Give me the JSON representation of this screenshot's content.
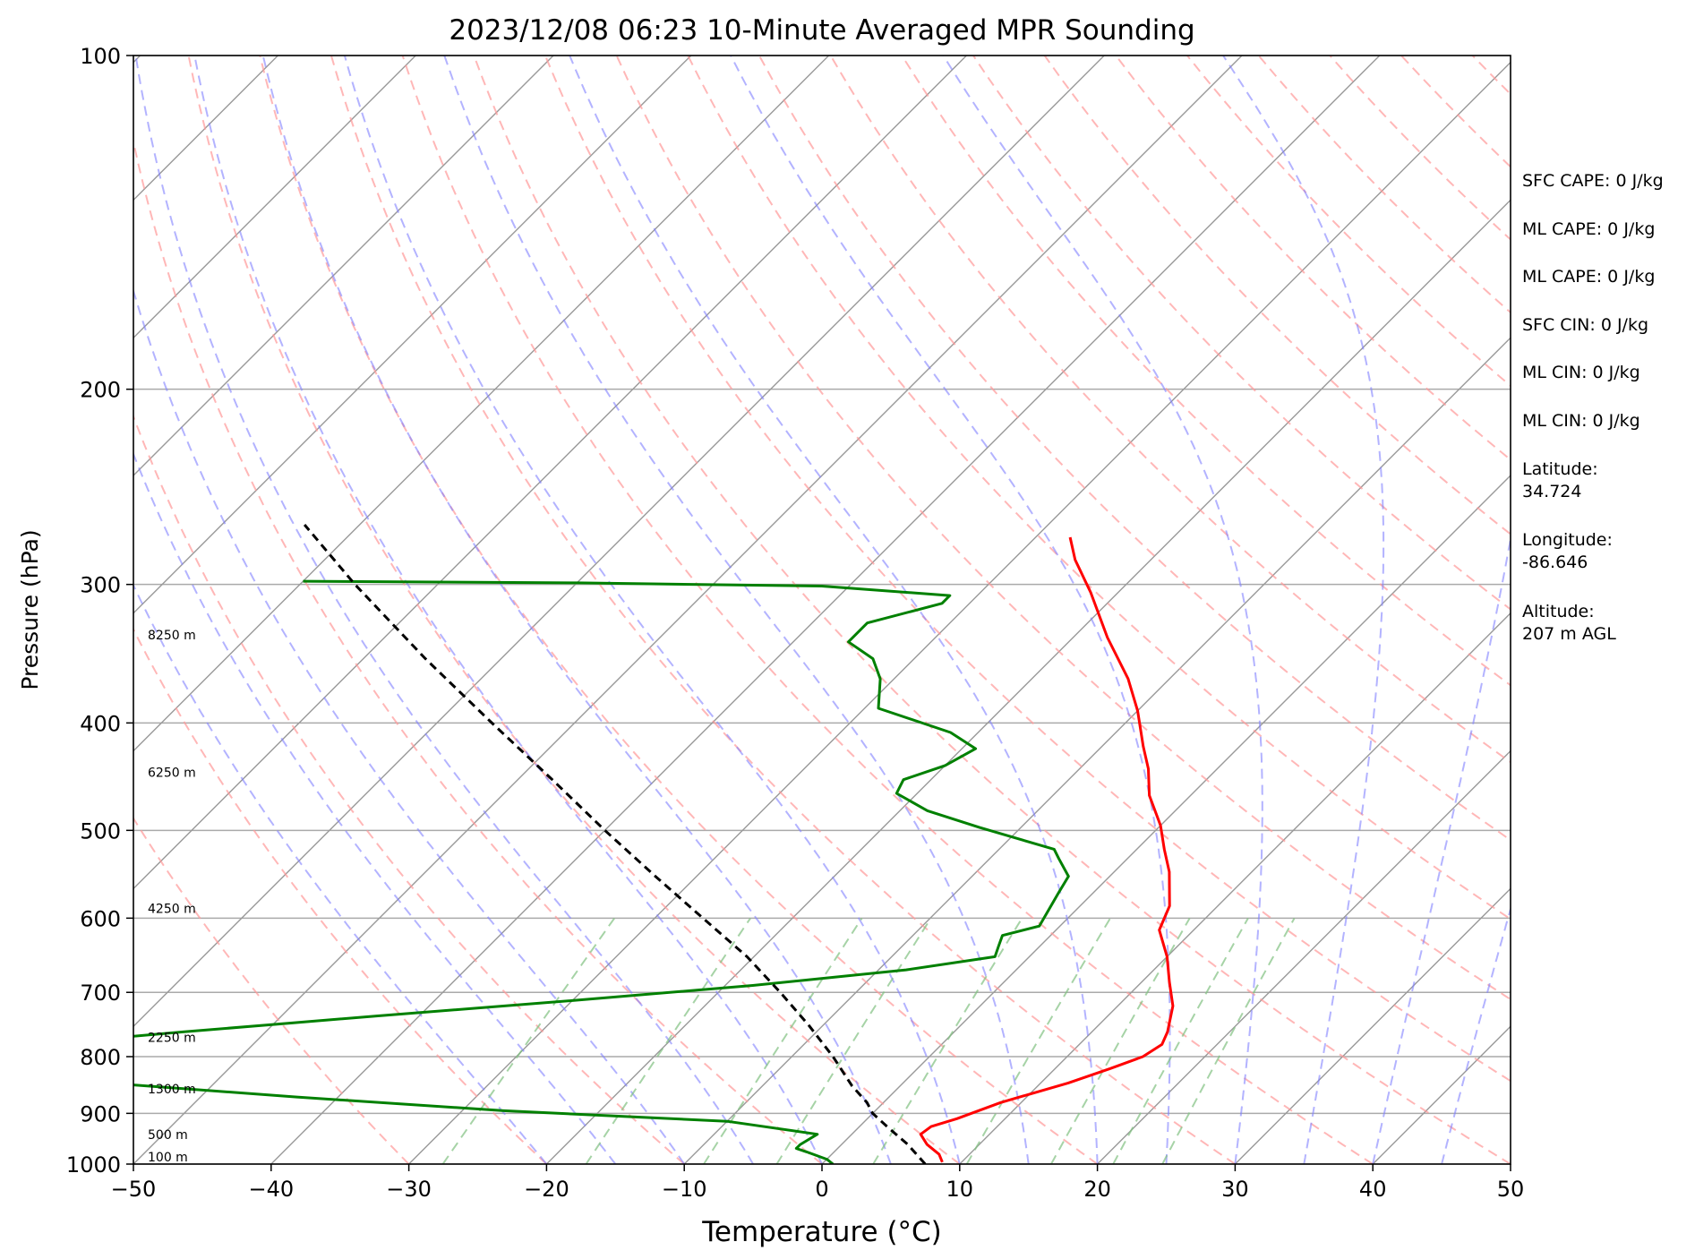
{
  "chart_data": {
    "type": "line",
    "subtype": "skew-t log-p sounding",
    "title": "2023/12/08 06:23 10-Minute Averaged MPR Sounding",
    "xlabel": "Temperature (°C)",
    "ylabel": "Pressure (hPa)",
    "xlim": [
      -50,
      50
    ],
    "ylim": [
      1000,
      100
    ],
    "y_scale": "log",
    "skew_degrees": 45,
    "x_ticks": [
      -50,
      -40,
      -30,
      -20,
      -10,
      0,
      10,
      20,
      30,
      40,
      50
    ],
    "x_tick_labels": [
      "−50",
      "−40",
      "−30",
      "−20",
      "−10",
      "0",
      "10",
      "20",
      "30",
      "40",
      "50"
    ],
    "y_ticks": [
      1000,
      900,
      800,
      700,
      600,
      500,
      400,
      300,
      200,
      100
    ],
    "y_tick_labels": [
      "1000",
      "900",
      "800",
      "700",
      "600",
      "500",
      "400",
      "300",
      "200",
      "100"
    ],
    "grid": true,
    "height_labels": [
      {
        "pressure": 1000,
        "text": "100 m"
      },
      {
        "pressure": 955,
        "text": "500 m"
      },
      {
        "pressure": 868,
        "text": "1300 m"
      },
      {
        "pressure": 780,
        "text": "2250 m"
      },
      {
        "pressure": 597,
        "text": "4250 m"
      },
      {
        "pressure": 450,
        "text": "6250 m"
      },
      {
        "pressure": 338,
        "text": "8250 m"
      }
    ],
    "series": [
      {
        "role": "temperature",
        "color": "#ff0000",
        "points": [
          [
            996,
            8.6
          ],
          [
            980,
            7.8
          ],
          [
            960,
            6.2
          ],
          [
            940,
            5.0
          ],
          [
            925,
            5.2
          ],
          [
            910,
            6.5
          ],
          [
            880,
            8.5
          ],
          [
            845,
            12.0
          ],
          [
            820,
            14.0
          ],
          [
            800,
            15.5
          ],
          [
            780,
            16.0
          ],
          [
            760,
            15.5
          ],
          [
            720,
            14.0
          ],
          [
            685,
            12.0
          ],
          [
            650,
            10.0
          ],
          [
            615,
            7.5
          ],
          [
            585,
            6.5
          ],
          [
            545,
            4.0
          ],
          [
            520,
            2.0
          ],
          [
            495,
            0.0
          ],
          [
            465,
            -3.0
          ],
          [
            440,
            -5.0
          ],
          [
            420,
            -7.0
          ],
          [
            390,
            -10.0
          ],
          [
            365,
            -13.0
          ],
          [
            335,
            -17.5
          ],
          [
            305,
            -22.0
          ],
          [
            285,
            -25.5
          ],
          [
            272,
            -27.5
          ]
        ]
      },
      {
        "role": "dewpoint",
        "color": "#008000",
        "points": [
          [
            1000,
            0.8
          ],
          [
            990,
            0.0
          ],
          [
            975,
            -2.0
          ],
          [
            968,
            -3.0
          ],
          [
            960,
            -3.0
          ],
          [
            940,
            -2.5
          ],
          [
            915,
            -10.0
          ],
          [
            895,
            -27.0
          ],
          [
            870,
            -43.0
          ],
          [
            838,
            -62.0
          ],
          [
            820,
            -63.0
          ],
          [
            812,
            -60.5
          ],
          [
            800,
            -66.0
          ],
          [
            790,
            -64.0
          ],
          [
            778,
            -64.5
          ],
          [
            760,
            -56.0
          ],
          [
            735,
            -43.0
          ],
          [
            712,
            -30.0
          ],
          [
            690,
            -18.0
          ],
          [
            668,
            -8.0
          ],
          [
            650,
            -2.5
          ],
          [
            636,
            -3.0
          ],
          [
            622,
            -3.5
          ],
          [
            610,
            -1.5
          ],
          [
            570,
            -2.5
          ],
          [
            550,
            -3.0
          ],
          [
            530,
            -5.0
          ],
          [
            520,
            -6.0
          ],
          [
            497,
            -13.0
          ],
          [
            480,
            -18.0
          ],
          [
            463,
            -21.5
          ],
          [
            450,
            -22.0
          ],
          [
            437,
            -20.0
          ],
          [
            422,
            -19.0
          ],
          [
            408,
            -22.0
          ],
          [
            388,
            -29.0
          ],
          [
            365,
            -31.0
          ],
          [
            350,
            -33.0
          ],
          [
            338,
            -36.0
          ],
          [
            325,
            -36.0
          ],
          [
            312,
            -32.0
          ],
          [
            307,
            -32.0
          ],
          [
            301,
            -42.0
          ],
          [
            299,
            -60.0
          ],
          [
            298,
            -80.0
          ]
        ]
      },
      {
        "role": "parcel",
        "color": "#000000",
        "dashed": true,
        "points": [
          [
            1000,
            7.5
          ],
          [
            960,
            4.8
          ],
          [
            925,
            2.0
          ],
          [
            900,
            0.0
          ],
          [
            880,
            -1.2
          ],
          [
            850,
            -3.5
          ],
          [
            800,
            -7.0
          ],
          [
            750,
            -11.0
          ],
          [
            700,
            -15.5
          ],
          [
            650,
            -20.5
          ],
          [
            600,
            -26.5
          ],
          [
            550,
            -33.0
          ],
          [
            500,
            -40.0
          ],
          [
            450,
            -47.5
          ],
          [
            400,
            -56.0
          ],
          [
            350,
            -65.5
          ],
          [
            300,
            -76.0
          ],
          [
            265,
            -84.0
          ]
        ]
      }
    ],
    "colors": {
      "isotherm": "#999999",
      "dry_adiabat": "#ff9999",
      "moist_adiabat": "#8080ff",
      "mixing_ratio": "#80c080",
      "grid": "#aaaaaa"
    }
  },
  "annotations": [
    "SFC CAPE: 0 J/kg",
    "ML CAPE: 0 J/kg",
    "ML CAPE: 0 J/kg",
    "SFC CIN: 0 J/kg",
    "ML CIN: 0 J/kg",
    "ML CIN: 0 J/kg",
    "Latitude:",
    "34.724",
    "Longitude:",
    "-86.646",
    "Altitude:",
    "207 m AGL"
  ]
}
